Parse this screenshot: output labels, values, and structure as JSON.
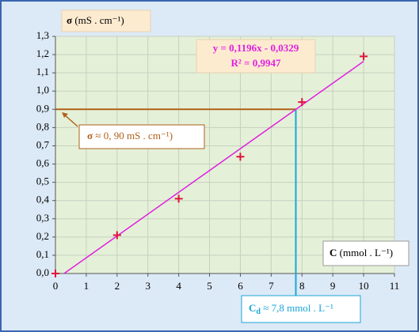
{
  "chart_data": {
    "type": "scatter",
    "ylabel_symbol": "σ",
    "ylabel_unit": "(mS . cm⁻¹)",
    "xlabel_symbol": "C",
    "xlabel_unit": "(mmol . L⁻¹)",
    "equation": "y = 0,1196x - 0,0329",
    "r_squared": "R² = 0,9947",
    "x": [
      0,
      2,
      4,
      6,
      8,
      10
    ],
    "values": [
      0,
      0.21,
      0.41,
      0.64,
      0.94,
      1.19
    ],
    "color": "#e0143c",
    "fit_line": {
      "x": [
        0.28,
        10
      ],
      "values": [
        0,
        1.163
      ],
      "color": "#e020e0"
    },
    "reading": {
      "x": 7.8,
      "y": 0.9,
      "h_color": "#b0601a",
      "v_color": "#1aa6d8",
      "y_symbol": "σ",
      "y_text": "≈ 0, 90 mS . cm⁻¹)",
      "x_symbol": "C",
      "x_sub": "d",
      "x_text": "≈ 7,8 mmol . L⁻¹"
    },
    "xlim": [
      0,
      11
    ],
    "ylim": [
      0,
      1.3
    ],
    "xticks": [
      0,
      1,
      2,
      3,
      4,
      5,
      6,
      7,
      8,
      9,
      10,
      11
    ],
    "yticks": [
      {
        "value": 0,
        "label": "0,0"
      },
      {
        "value": 0.1,
        "label": "0,1"
      },
      {
        "value": 0.2,
        "label": "0,2"
      },
      {
        "value": 0.3,
        "label": "0,3"
      },
      {
        "value": 0.4,
        "label": "0,4"
      },
      {
        "value": 0.5,
        "label": "0,5"
      },
      {
        "value": 0.6,
        "label": "0,6"
      },
      {
        "value": 0.7,
        "label": "0,7"
      },
      {
        "value": 0.8,
        "label": "0,8"
      },
      {
        "value": 0.9,
        "label": "0,9"
      },
      {
        "value": 1.0,
        "label": "1,0"
      },
      {
        "value": 1.1,
        "label": "1,1"
      },
      {
        "value": 1.2,
        "label": "1,2"
      },
      {
        "value": 1.3,
        "label": "1,3"
      }
    ],
    "grid": true
  }
}
